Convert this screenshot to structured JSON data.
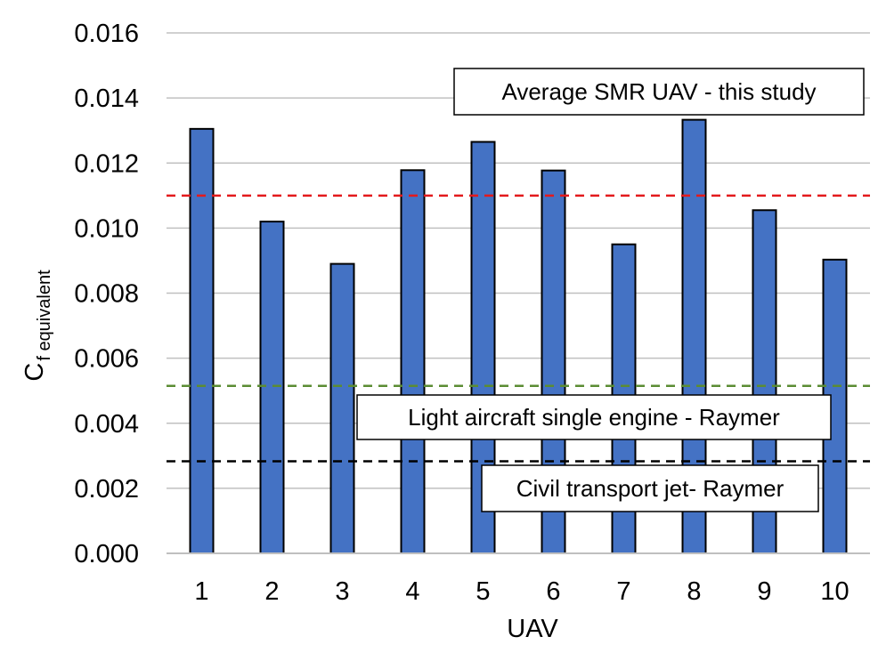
{
  "chart_data": {
    "type": "bar",
    "categories": [
      "1",
      "2",
      "3",
      "4",
      "5",
      "6",
      "7",
      "8",
      "9",
      "10"
    ],
    "values": [
      0.01305,
      0.0102,
      0.0089,
      0.01178,
      0.01265,
      0.01177,
      0.0095,
      0.01333,
      0.01055,
      0.00903
    ],
    "xlabel": "UAV",
    "ylabel": {
      "main": "C",
      "subscript": "f equivalent"
    },
    "ylim": [
      0,
      0.016
    ],
    "yticks": [
      "0.000",
      "0.002",
      "0.004",
      "0.006",
      "0.008",
      "0.010",
      "0.012",
      "0.014",
      "0.016"
    ],
    "grid": true,
    "bar_color": "#4472c4",
    "reference_lines": [
      {
        "label": "Average SMR UAV - this study",
        "value": 0.011,
        "color": "#e31a1c"
      },
      {
        "label": "Light aircraft single engine - Raymer",
        "value": 0.00515,
        "color": "#5b8c33"
      },
      {
        "label": "Civil transport jet- Raymer",
        "value": 0.00283,
        "color": "#000000"
      }
    ]
  }
}
